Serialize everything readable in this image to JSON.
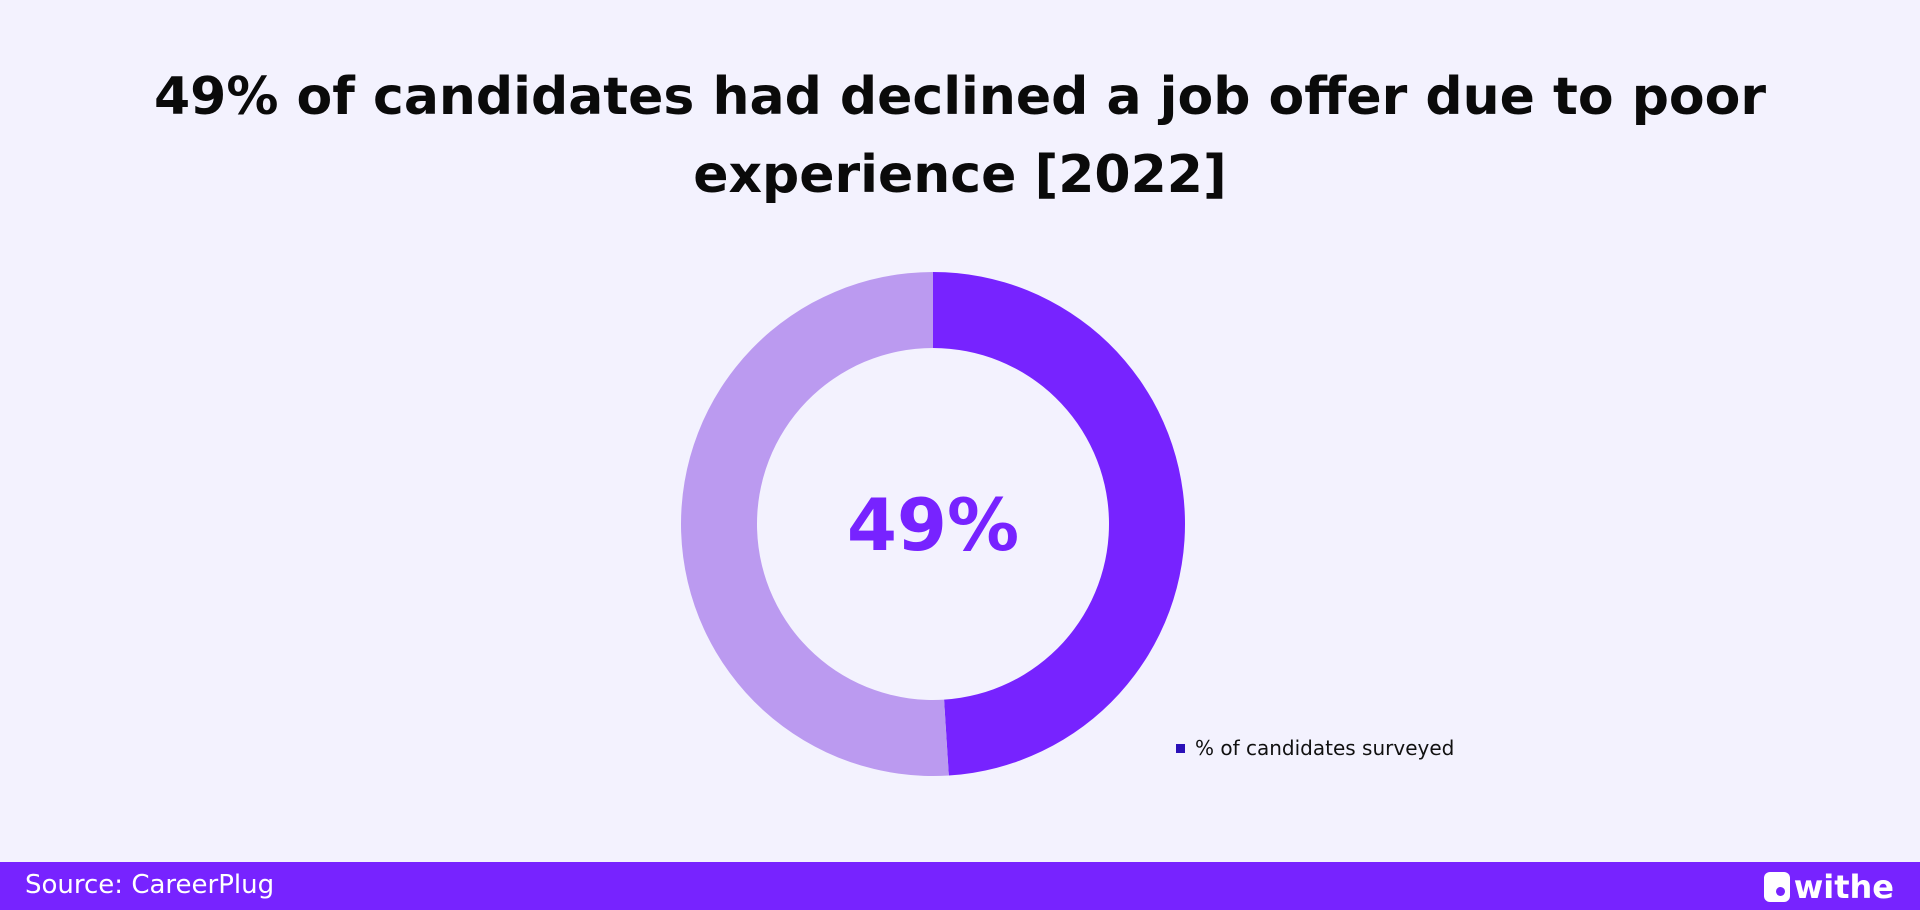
{
  "chart_data": {
    "type": "pie",
    "donut": true,
    "title": [
      "49% of candidates had declined a job offer due to poor",
      "experience [2022]"
    ],
    "center_label": "49%",
    "slices": [
      {
        "value": 49,
        "color": "#7723ff"
      },
      {
        "value": 51,
        "color": "#bb9af0"
      }
    ],
    "legend": [
      {
        "label": "% of candidates surveyed",
        "color": "#2a10b8"
      }
    ],
    "legend_placement": "bottom-right"
  },
  "footer": {
    "source": "Source: CareerPlug",
    "logo_text": "withe"
  },
  "colors": {
    "background": "#f3f2fe",
    "accent": "#7723ff"
  }
}
